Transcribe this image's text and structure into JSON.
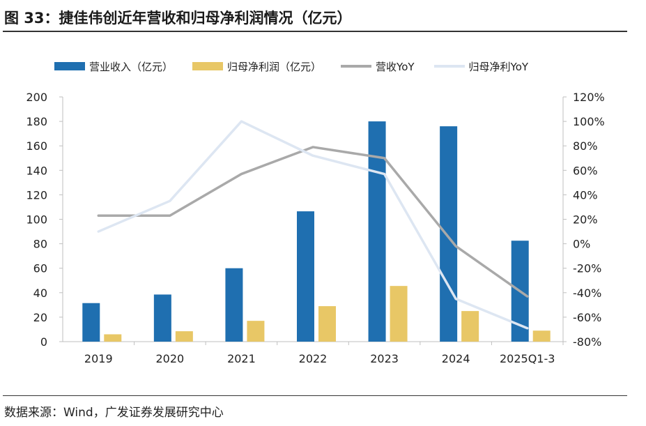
{
  "figure": {
    "title": "图 33：捷佳伟创近年营收和归母净利润情况（亿元）",
    "source": "数据来源：Wind，广发证券发展研究中心"
  },
  "chart_data": {
    "type": "bar",
    "categories": [
      "2019",
      "2020",
      "2021",
      "2022",
      "2023",
      "2024",
      "2025Q1-3"
    ],
    "series": [
      {
        "name": "营业收入（亿元）",
        "kind": "bar",
        "axis": "left",
        "color": "#1f6fb0",
        "values": [
          31.5,
          38.5,
          60.0,
          106.5,
          180.0,
          176.0,
          82.5
        ]
      },
      {
        "name": "归母净利润（亿元）",
        "kind": "bar",
        "axis": "left",
        "color": "#e8c766",
        "values": [
          6.0,
          8.5,
          17.0,
          29.0,
          45.5,
          25.0,
          9.0
        ]
      },
      {
        "name": "营收YoY",
        "kind": "line",
        "axis": "right",
        "color": "#a9a9a9",
        "values": [
          23,
          23,
          57,
          79,
          70,
          -2,
          -43
        ]
      },
      {
        "name": "归母净利YoY",
        "kind": "line",
        "axis": "right",
        "color": "#dde6f2",
        "values": [
          10,
          35,
          100,
          72,
          57,
          -45,
          -69
        ]
      }
    ],
    "y_left": {
      "min": 0,
      "max": 200,
      "step": 20,
      "ticks": [
        "0",
        "20",
        "40",
        "60",
        "80",
        "100",
        "120",
        "140",
        "160",
        "180",
        "200"
      ]
    },
    "y_right": {
      "min": -80,
      "max": 120,
      "step": 20,
      "ticks": [
        "-80%",
        "-60%",
        "-40%",
        "-20%",
        "0%",
        "20%",
        "40%",
        "60%",
        "80%",
        "100%",
        "120%"
      ]
    },
    "legend_position": "top",
    "grid": false
  }
}
